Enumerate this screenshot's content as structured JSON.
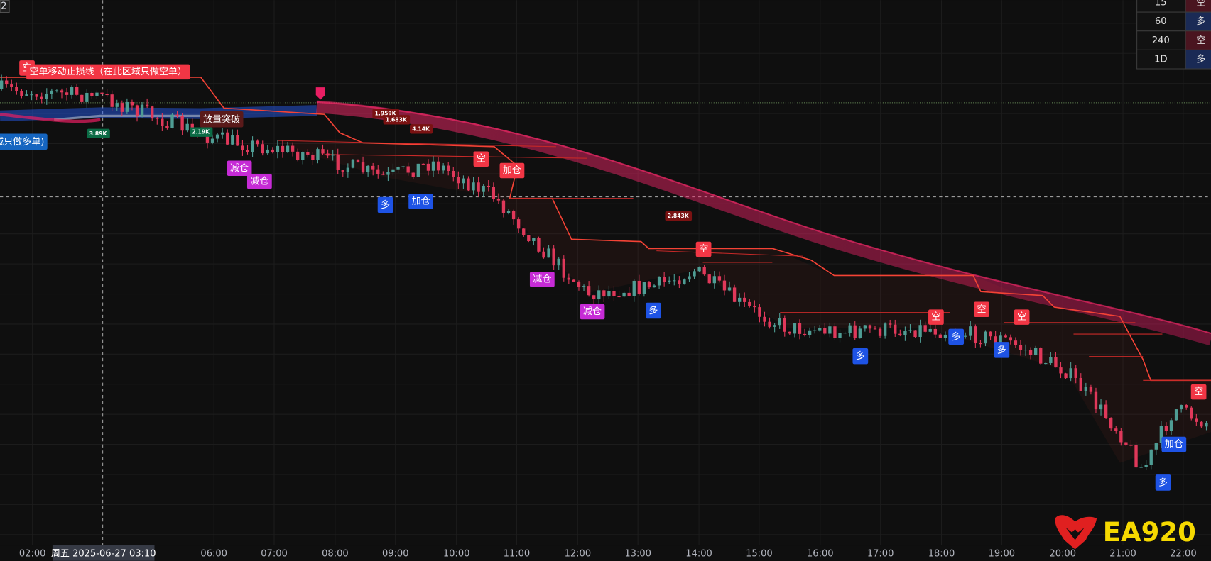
{
  "pane_index": "2",
  "timeframe_table": {
    "rows": [
      [
        "15",
        "空"
      ],
      [
        "60",
        "多"
      ],
      [
        "240",
        "空"
      ],
      [
        "1D",
        "多"
      ]
    ]
  },
  "annotations": {
    "short_zone": "空单移动止损线（在此区域只做空单）",
    "long_zone": "域只做多单)",
    "volume_breakout": "放量突破"
  },
  "volume_tags": [
    "3.89K",
    "2.19K",
    "1.959K",
    "1.683K",
    "4.14K",
    "2.843K"
  ],
  "signals": {
    "short": [
      "空",
      "空",
      "空",
      "空",
      "空",
      "空",
      "空"
    ],
    "long": [
      "多",
      "多",
      "多",
      "多",
      "多",
      "多"
    ],
    "add": [
      "加仓",
      "加仓",
      "加仓"
    ],
    "reduce": [
      "减仓",
      "减仓",
      "减仓",
      "减仓"
    ]
  },
  "time_axis": {
    "labels": [
      "02:00",
      "06:00",
      "07:00",
      "08:00",
      "09:00",
      "10:00",
      "11:00",
      "12:00",
      "13:00",
      "14:00",
      "15:00",
      "16:00",
      "17:00",
      "18:00",
      "19:00",
      "20:00",
      "21:00",
      "22:00"
    ],
    "crosshair_label": "周五 2025-06-27  03:10"
  },
  "logo": "EA920"
}
